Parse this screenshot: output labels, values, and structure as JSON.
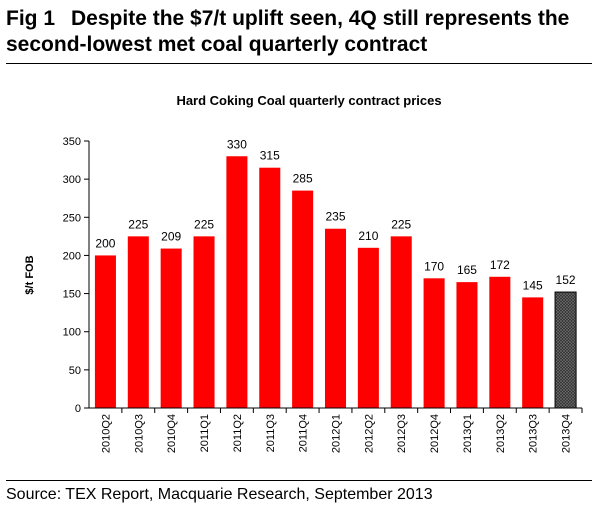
{
  "figure": {
    "number": "Fig 1",
    "title": "Despite the $7/t uplift seen, 4Q still represents the second-lowest met coal quarterly contract",
    "source": "Source: TEX Report, Macquarie Research, September 2013"
  },
  "colors": {
    "bar": "#ff0000",
    "highlight_bar": "#404040",
    "axis": "#000000"
  },
  "chart_data": {
    "type": "bar",
    "title": "Hard Coking Coal quarterly contract prices",
    "xlabel": "",
    "ylabel": "$/t FOB",
    "ylim": [
      0,
      350
    ],
    "yticks": [
      0,
      50,
      100,
      150,
      200,
      250,
      300,
      350
    ],
    "grid": false,
    "categories": [
      "2010Q2",
      "2010Q3",
      "2010Q4",
      "2011Q1",
      "2011Q2",
      "2011Q3",
      "2011Q4",
      "2012Q1",
      "2012Q2",
      "2012Q3",
      "2012Q4",
      "2013Q1",
      "2013Q2",
      "2013Q3",
      "2013Q4"
    ],
    "values": [
      200,
      225,
      209,
      225,
      330,
      315,
      285,
      235,
      210,
      225,
      170,
      165,
      172,
      145,
      152
    ],
    "highlighted_category": "2013Q4"
  }
}
